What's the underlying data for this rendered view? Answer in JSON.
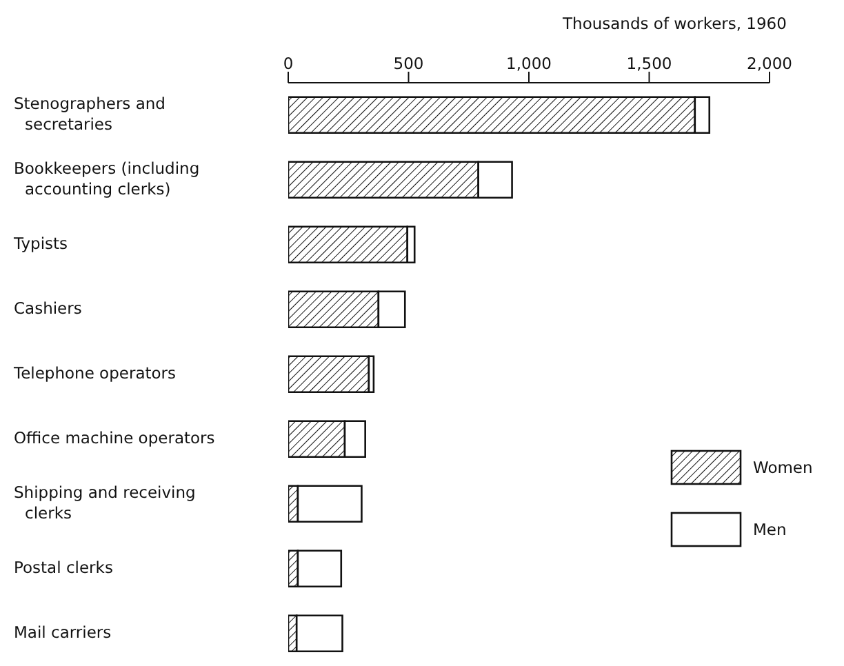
{
  "chart_data": {
    "type": "bar",
    "orientation": "horizontal",
    "stacked": true,
    "xlabel": "Thousands of workers, 1960",
    "categories": [
      "Stenographers and secretaries",
      "Bookkeepers (including accounting clerks)",
      "Typists",
      "Cashiers",
      "Telephone operators",
      "Office machine operators",
      "Shipping and receiving clerks",
      "Postal clerks",
      "Mail carriers"
    ],
    "series": [
      {
        "name": "Women",
        "color": "#111111",
        "values": [
          1690,
          790,
          495,
          375,
          335,
          235,
          40,
          40,
          35
        ]
      },
      {
        "name": "Men",
        "color": "#ffffff",
        "values": [
          60,
          140,
          30,
          110,
          20,
          85,
          265,
          180,
          190
        ]
      }
    ],
    "xlim": [
      0,
      2000
    ],
    "xticks": [
      0,
      500,
      {
        "value": 1000,
        "label": "1,000"
      },
      {
        "value": 1500,
        "label": "1,500"
      },
      {
        "value": 2000,
        "label": "2,000"
      }
    ],
    "legend": "right"
  }
}
